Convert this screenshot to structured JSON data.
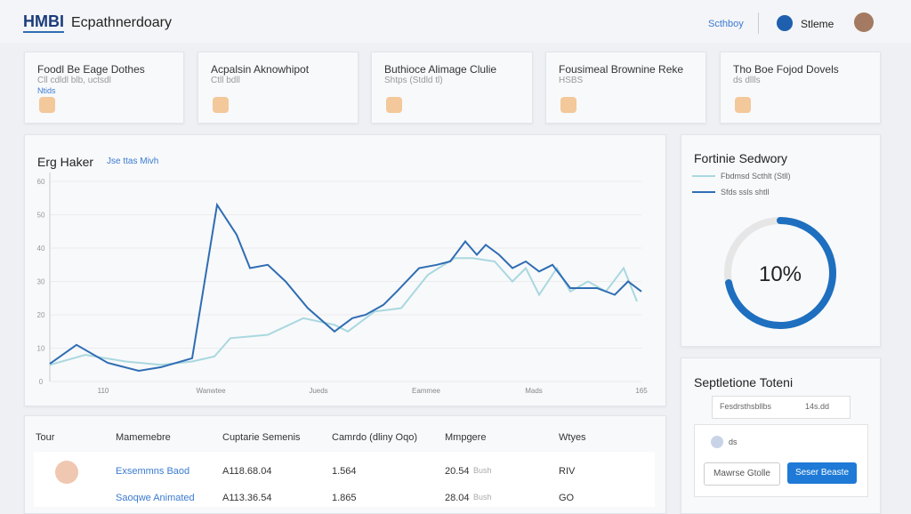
{
  "header": {
    "logo": "HMBI",
    "title": "Ecpathnerdoary",
    "nav_link": "Scthboy",
    "user": "Stleme"
  },
  "cards": [
    {
      "title": "Foodl Be Eage Dothes",
      "subtitle": "Cll cdldl blb, uctsdl",
      "tag": "Ntids"
    },
    {
      "title": "Acpalsin Aknowhipot",
      "subtitle": "Ctll bdll"
    },
    {
      "title": "Buthioce Alimage Clulie",
      "subtitle": "Shtps (Stdld tl)"
    },
    {
      "title": "Fousimeal Brownine Reke",
      "subtitle": "HSBS"
    },
    {
      "title": "Tho Boe Fojod Dovels",
      "subtitle": "ds dllls"
    }
  ],
  "line_chart": {
    "title": "Erg Haker",
    "link": "Jse ttas Mivh",
    "ylim": [
      0,
      60
    ],
    "yticks": [
      0,
      10,
      20,
      30,
      40,
      50,
      60
    ],
    "xlim": [
      0,
      665
    ],
    "x_labels": [
      "110",
      "Wanwtee",
      "Jueds",
      "Eammee",
      "Mads",
      "165"
    ],
    "series": [
      {
        "color": "#2f6db3",
        "x": [
          0,
          30,
          65,
          100,
          125,
          160,
          188,
          210,
          225,
          245,
          265,
          290,
          320,
          340,
          355,
          375,
          390,
          415,
          435,
          450,
          467,
          480,
          490,
          505,
          520,
          535,
          550,
          565,
          585,
          600,
          615,
          635,
          650,
          665
        ],
        "values": [
          5.3,
          11,
          5.6,
          3.2,
          4.3,
          7,
          53,
          44,
          34,
          35,
          30,
          22,
          15,
          19,
          20,
          23,
          27,
          34,
          35,
          36,
          42,
          38,
          41,
          38,
          34,
          36,
          33,
          35,
          28,
          28,
          28,
          26,
          30,
          27
        ]
      },
      {
        "color": "#a9d8df",
        "x": [
          0,
          40,
          85,
          125,
          160,
          185,
          203,
          245,
          285,
          320,
          335,
          365,
          395,
          425,
          455,
          475,
          500,
          520,
          535,
          550,
          570,
          585,
          605,
          625,
          645,
          660
        ],
        "values": [
          5,
          8,
          6,
          5,
          6,
          7.5,
          13,
          14,
          19,
          17,
          15,
          21,
          22,
          32,
          37,
          37,
          36,
          30,
          34,
          26,
          34,
          27,
          30,
          27,
          34,
          24
        ]
      }
    ]
  },
  "donut": {
    "title": "Fortinie Sedwory",
    "legend": [
      "Fbdmsd Scthlt (Stll)",
      "Sfds ssls shtll"
    ],
    "center_label": "10%",
    "fill_percent": 72
  },
  "settings_panel": {
    "title": "Septletione Toteni",
    "select": "Fesdrsthsbllbs",
    "select_value": "14s.dd",
    "item": "ds",
    "buttons": [
      "Mawrse Gtolle",
      "Seser Beaste"
    ]
  },
  "table": {
    "headers": [
      "Tour",
      "Mamemebre",
      "Cuptarie Semenis",
      "Camrdo (dliny Oqo)",
      "Mmpgere",
      "Wtyes"
    ],
    "rows": [
      [
        "Exsemmns Baod",
        "A118.68.04",
        "1.564",
        "20.54",
        "Bush",
        "RIV"
      ],
      [
        "Saoqwe Animated",
        "A113.36.54",
        "1.865",
        "28.04",
        "Bush",
        "GO"
      ]
    ]
  }
}
